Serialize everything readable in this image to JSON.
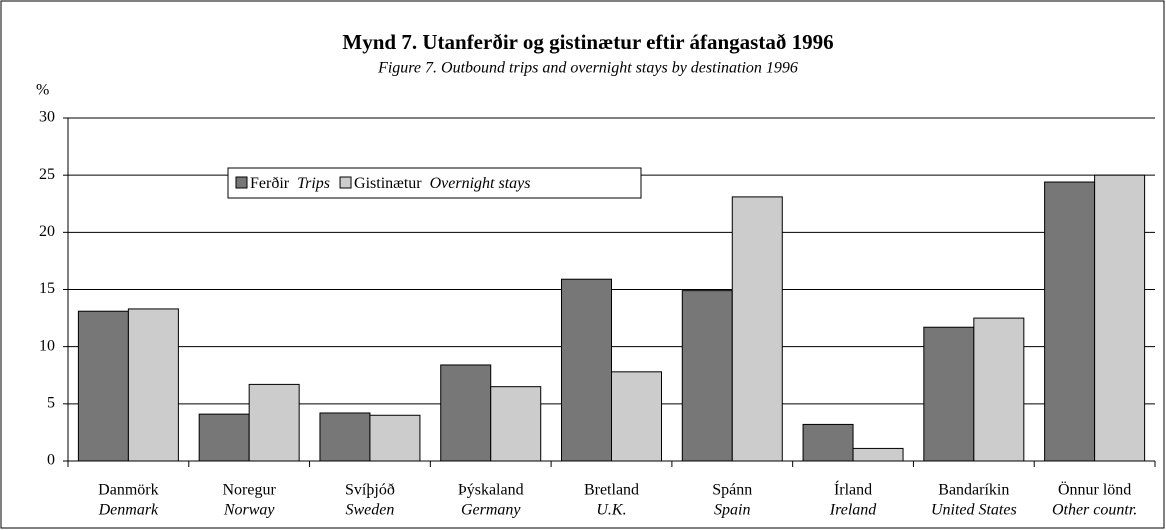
{
  "chart_data": {
    "type": "bar",
    "title": "Mynd 7.  Utanferðir og gistinætur eftir áfangastað 1996",
    "subtitle": "Figure 7.   Outbound trips and overnight stays by destination 1996",
    "y_label": "%",
    "categories": [
      "Danmörk",
      "Noregur",
      "Svíþjóð",
      "Þýskaland",
      "Bretland",
      "Spánn",
      "Írland",
      "Bandaríkin",
      "Önnur lönd"
    ],
    "categories_en": [
      "Denmark",
      "Norway",
      "Sweden",
      "Germany",
      "U.K.",
      "Spain",
      "Ireland",
      "United States",
      "Other countr."
    ],
    "series": [
      {
        "name": "Ferðir",
        "name_en": "Trips",
        "color": "#777777",
        "values": [
          13.1,
          4.1,
          4.2,
          8.4,
          15.9,
          14.9,
          3.2,
          11.7,
          24.4
        ]
      },
      {
        "name": "Gistinætur",
        "name_en": "Overnight stays",
        "color": "#cccccc",
        "values": [
          13.3,
          6.7,
          4.0,
          6.5,
          7.8,
          23.1,
          1.1,
          12.5,
          25.0
        ]
      }
    ],
    "ylim": [
      0,
      30
    ],
    "yticks": [
      0,
      5,
      10,
      15,
      20,
      25,
      30
    ],
    "grid": true
  }
}
